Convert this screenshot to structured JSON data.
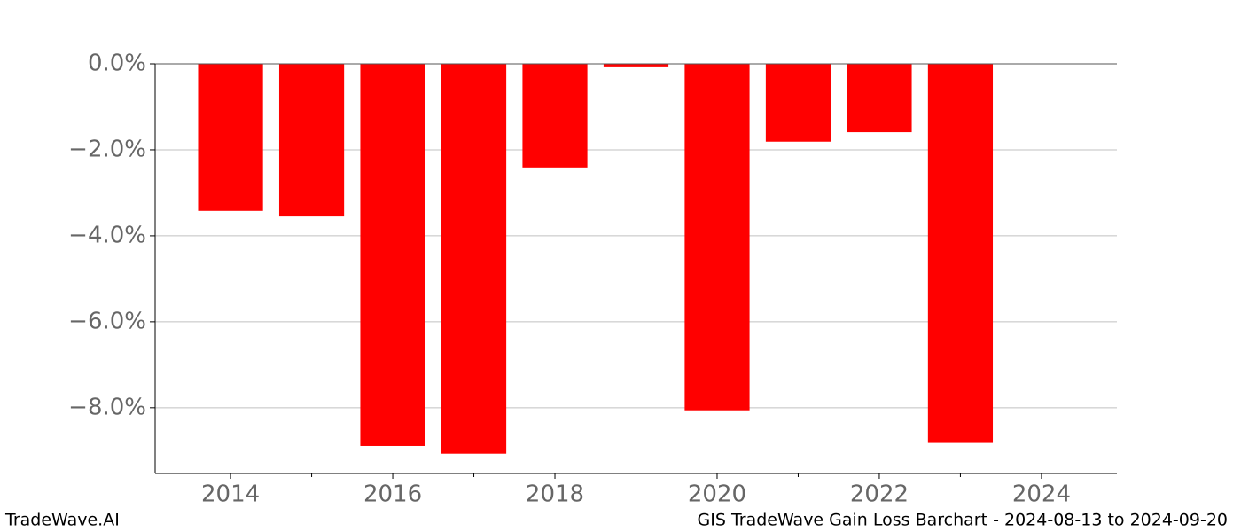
{
  "chart_data": {
    "type": "bar",
    "x": [
      2014,
      2015,
      2016,
      2017,
      2018,
      2019,
      2020,
      2021,
      2022,
      2023
    ],
    "values": [
      -3.42,
      -3.55,
      -8.89,
      -9.07,
      -2.41,
      -0.08,
      -8.06,
      -1.81,
      -1.59,
      -8.82
    ],
    "color": "#ff0000",
    "xlim": [
      2013.07,
      2024.93
    ],
    "xticks": [
      2014,
      2016,
      2018,
      2020,
      2022,
      2024
    ],
    "xminorticks": [
      2015,
      2017,
      2019,
      2021,
      2023
    ],
    "ylim": [
      -9.53,
      0
    ],
    "yticks": [
      {
        "value": 0,
        "label": "0.0%"
      },
      {
        "value": -2,
        "label": "−2.0%"
      },
      {
        "value": -4,
        "label": "−4.0%"
      },
      {
        "value": -6,
        "label": "−6.0%"
      },
      {
        "value": -8,
        "label": "−8.0%"
      }
    ],
    "grid": true,
    "footer_left": "TradeWave.AI",
    "footer_right": "GIS TradeWave Gain Loss Barchart - 2024-08-13 to 2024-09-20"
  }
}
